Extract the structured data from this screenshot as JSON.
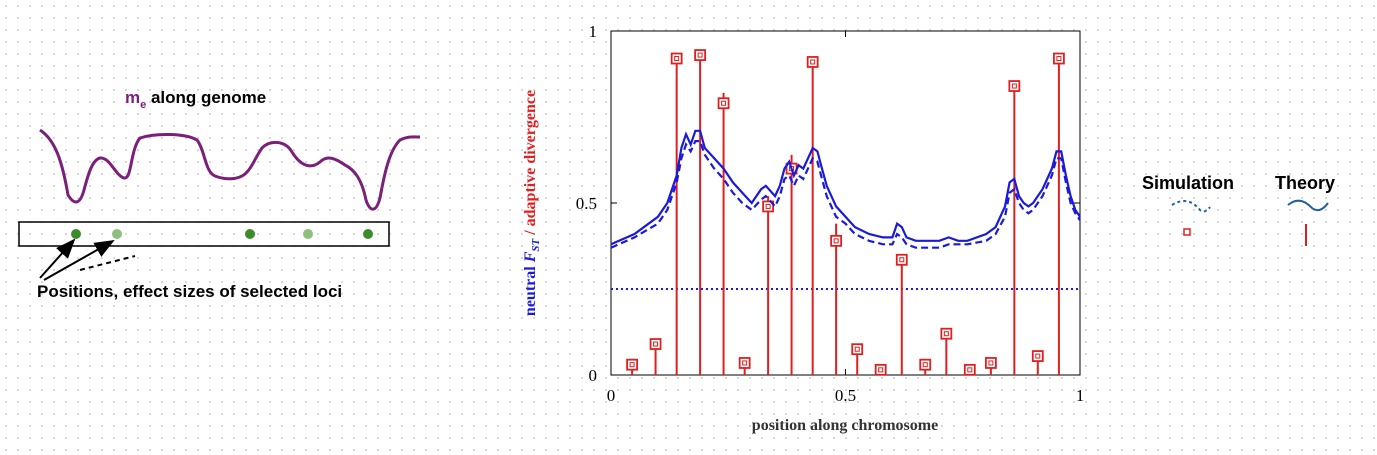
{
  "diagram": {
    "title_var": "m",
    "title_sub": "e",
    "title_rest": " along genome",
    "loci_caption": "Positions, effect sizes of selected loci",
    "colors": {
      "migration_curve": "#7a1f7a",
      "locus_dark": "#3c8c2c",
      "locus_light": "#8cc07c"
    }
  },
  "chart_data": {
    "type": "line",
    "xlabel": "position along chromosome",
    "ylabel_parts": [
      {
        "text": "neutral ",
        "color": "#1a1ad8",
        "italic": false
      },
      {
        "text": "F",
        "color": "#1a1ad8",
        "italic": true
      },
      {
        "text": "ST",
        "color": "#1a1ad8",
        "italic": true,
        "sub": true
      },
      {
        "text": " / adaptive divergence",
        "color": "#e02020",
        "italic": false
      }
    ],
    "xlim": [
      0,
      1
    ],
    "ylim": [
      0,
      1
    ],
    "xticks": [
      {
        "value": 0,
        "label": "0"
      },
      {
        "value": 0.5,
        "label": "0.5"
      },
      {
        "value": 1,
        "label": "1"
      }
    ],
    "yticks": [
      {
        "value": 0,
        "label": "0"
      },
      {
        "value": 0.5,
        "label": "0.5"
      },
      {
        "value": 1,
        "label": "1"
      }
    ],
    "baseline": 0.25,
    "series": [
      {
        "style": "solid",
        "color": "#1a1ad8",
        "x": [
          0,
          0.05,
          0.1,
          0.12,
          0.14,
          0.15,
          0.16,
          0.17,
          0.18,
          0.19,
          0.2,
          0.22,
          0.24,
          0.26,
          0.28,
          0.3,
          0.32,
          0.33,
          0.35,
          0.36,
          0.37,
          0.38,
          0.39,
          0.4,
          0.41,
          0.42,
          0.43,
          0.44,
          0.45,
          0.46,
          0.48,
          0.5,
          0.52,
          0.55,
          0.58,
          0.6,
          0.61,
          0.62,
          0.63,
          0.65,
          0.68,
          0.7,
          0.72,
          0.74,
          0.76,
          0.8,
          0.82,
          0.84,
          0.85,
          0.86,
          0.87,
          0.88,
          0.89,
          0.9,
          0.92,
          0.94,
          0.95,
          0.96,
          0.97,
          0.98,
          0.99,
          1.0
        ],
        "y": [
          0.38,
          0.41,
          0.46,
          0.5,
          0.58,
          0.66,
          0.7,
          0.67,
          0.71,
          0.71,
          0.66,
          0.63,
          0.6,
          0.56,
          0.53,
          0.5,
          0.54,
          0.55,
          0.52,
          0.55,
          0.6,
          0.62,
          0.58,
          0.61,
          0.6,
          0.63,
          0.66,
          0.65,
          0.6,
          0.55,
          0.49,
          0.46,
          0.43,
          0.41,
          0.4,
          0.4,
          0.44,
          0.43,
          0.4,
          0.39,
          0.39,
          0.39,
          0.4,
          0.39,
          0.39,
          0.41,
          0.43,
          0.49,
          0.56,
          0.57,
          0.52,
          0.5,
          0.49,
          0.5,
          0.54,
          0.6,
          0.65,
          0.65,
          0.58,
          0.52,
          0.48,
          0.46
        ]
      },
      {
        "style": "dashed",
        "color": "#1a1ad8",
        "x": [
          0,
          0.05,
          0.1,
          0.12,
          0.14,
          0.15,
          0.16,
          0.17,
          0.18,
          0.19,
          0.2,
          0.22,
          0.24,
          0.26,
          0.28,
          0.3,
          0.32,
          0.33,
          0.35,
          0.36,
          0.37,
          0.38,
          0.39,
          0.4,
          0.41,
          0.42,
          0.43,
          0.44,
          0.45,
          0.46,
          0.48,
          0.5,
          0.52,
          0.55,
          0.58,
          0.6,
          0.61,
          0.62,
          0.63,
          0.65,
          0.68,
          0.7,
          0.72,
          0.74,
          0.76,
          0.8,
          0.82,
          0.84,
          0.85,
          0.86,
          0.87,
          0.88,
          0.89,
          0.9,
          0.92,
          0.94,
          0.95,
          0.96,
          0.97,
          0.98,
          0.99,
          1.0
        ],
        "y": [
          0.37,
          0.4,
          0.44,
          0.48,
          0.56,
          0.63,
          0.67,
          0.65,
          0.68,
          0.68,
          0.64,
          0.6,
          0.57,
          0.53,
          0.5,
          0.48,
          0.51,
          0.52,
          0.49,
          0.52,
          0.57,
          0.58,
          0.55,
          0.58,
          0.57,
          0.6,
          0.63,
          0.62,
          0.57,
          0.52,
          0.46,
          0.44,
          0.41,
          0.39,
          0.38,
          0.38,
          0.41,
          0.4,
          0.38,
          0.37,
          0.37,
          0.37,
          0.38,
          0.38,
          0.38,
          0.39,
          0.41,
          0.46,
          0.53,
          0.54,
          0.5,
          0.48,
          0.47,
          0.48,
          0.52,
          0.58,
          0.63,
          0.63,
          0.56,
          0.5,
          0.47,
          0.45
        ]
      }
    ],
    "loci": [
      {
        "x": 0.045,
        "sim": 0.03,
        "theory": 0.03
      },
      {
        "x": 0.095,
        "sim": 0.09,
        "theory": 0.09
      },
      {
        "x": 0.14,
        "sim": 0.92,
        "theory": 0.92
      },
      {
        "x": 0.19,
        "sim": 0.93,
        "theory": 0.93
      },
      {
        "x": 0.24,
        "sim": 0.79,
        "theory": 0.82
      },
      {
        "x": 0.285,
        "sim": 0.035,
        "theory": 0.035
      },
      {
        "x": 0.335,
        "sim": 0.49,
        "theory": 0.52
      },
      {
        "x": 0.385,
        "sim": 0.6,
        "theory": 0.64
      },
      {
        "x": 0.43,
        "sim": 0.91,
        "theory": 0.91
      },
      {
        "x": 0.48,
        "sim": 0.39,
        "theory": 0.44
      },
      {
        "x": 0.525,
        "sim": 0.075,
        "theory": 0.075
      },
      {
        "x": 0.575,
        "sim": 0.015,
        "theory": 0.015
      },
      {
        "x": 0.62,
        "sim": 0.335,
        "theory": 0.335
      },
      {
        "x": 0.67,
        "sim": 0.03,
        "theory": 0.03
      },
      {
        "x": 0.715,
        "sim": 0.12,
        "theory": 0.12
      },
      {
        "x": 0.765,
        "sim": 0.015,
        "theory": 0.015
      },
      {
        "x": 0.81,
        "sim": 0.035,
        "theory": 0.035
      },
      {
        "x": 0.86,
        "sim": 0.84,
        "theory": 0.84
      },
      {
        "x": 0.91,
        "sim": 0.055,
        "theory": 0.055
      },
      {
        "x": 0.955,
        "sim": 0.92,
        "theory": 0.92
      }
    ],
    "colors": {
      "fst": "#1a1ad8",
      "adaptive": "#e02020"
    }
  },
  "legend": {
    "simulation_label": "Simulation",
    "theory_label": "Theory",
    "colors": {
      "line": "#2060a0",
      "marker": "#e02020"
    }
  }
}
